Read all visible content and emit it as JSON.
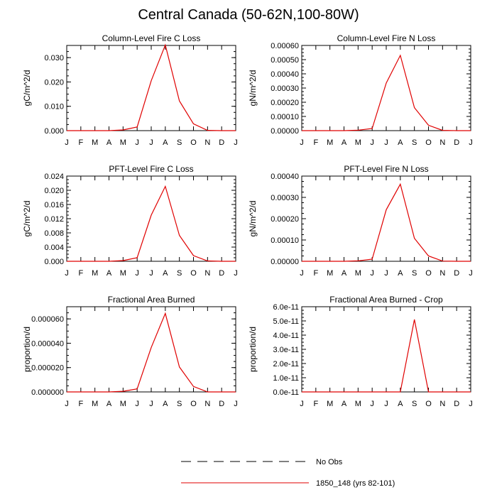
{
  "title": "Central Canada (50-62N,100-80W)",
  "months": [
    "J",
    "F",
    "M",
    "A",
    "M",
    "J",
    "J",
    "A",
    "S",
    "O",
    "N",
    "D",
    "J"
  ],
  "legend": {
    "entries": [
      {
        "label": "No Obs",
        "style": "dashed",
        "color": "#000000"
      },
      {
        "label": "1850_148 (yrs 82-101)",
        "style": "solid",
        "color": "#e00000"
      }
    ]
  },
  "chart_data": [
    {
      "type": "line",
      "title": "Column-Level Fire C Loss",
      "ylabel": "gC/m^2/d",
      "ylim": [
        0,
        0.035
      ],
      "yticks": [
        0.0,
        0.01,
        0.02,
        0.03
      ],
      "yticklabels": [
        "0.000",
        "0.010",
        "0.020",
        "0.030"
      ],
      "series": [
        {
          "name": "1850_148 (yrs 82-101)",
          "color": "#e00000",
          "values": [
            0,
            0,
            0,
            0,
            0.0003,
            0.0015,
            0.0205,
            0.0352,
            0.0122,
            0.0028,
            0.0001,
            0,
            0
          ]
        }
      ]
    },
    {
      "type": "line",
      "title": "Column-Level Fire N Loss",
      "ylabel": "gN/m^2/d",
      "ylim": [
        0,
        0.0006
      ],
      "yticks": [
        0,
        0.0001,
        0.0002,
        0.0003,
        0.0004,
        0.0005,
        0.0006
      ],
      "yticklabels": [
        "0.00000",
        "0.00010",
        "0.00020",
        "0.00030",
        "0.00040",
        "0.00050",
        "0.00060"
      ],
      "series": [
        {
          "name": "1850_148 (yrs 82-101)",
          "color": "#e00000",
          "values": [
            0,
            0,
            0,
            0,
            3e-06,
            1.5e-05,
            0.000335,
            0.00053,
            0.000162,
            3.8e-05,
            2e-06,
            0,
            0
          ]
        }
      ]
    },
    {
      "type": "line",
      "title": "PFT-Level Fire C Loss",
      "ylabel": "gC/m^2/d",
      "ylim": [
        0,
        0.024
      ],
      "yticks": [
        0,
        0.004,
        0.008,
        0.012,
        0.016,
        0.02,
        0.024
      ],
      "yticklabels": [
        "0.000",
        "0.004",
        "0.008",
        "0.012",
        "0.016",
        "0.020",
        "0.024"
      ],
      "series": [
        {
          "name": "1850_148 (yrs 82-101)",
          "color": "#e00000",
          "values": [
            0,
            0,
            0,
            0,
            0.0002,
            0.001,
            0.013,
            0.0211,
            0.0073,
            0.0016,
            0.0001,
            0,
            0
          ]
        }
      ]
    },
    {
      "type": "line",
      "title": "PFT-Level Fire N Loss",
      "ylabel": "gN/m^2/d",
      "ylim": [
        0,
        0.0004
      ],
      "yticks": [
        0,
        0.0001,
        0.0002,
        0.0003,
        0.0004
      ],
      "yticklabels": [
        "0.00000",
        "0.00010",
        "0.00020",
        "0.00030",
        "0.00040"
      ],
      "series": [
        {
          "name": "1850_148 (yrs 82-101)",
          "color": "#e00000",
          "values": [
            0,
            0,
            0,
            0,
            2e-06,
            1e-05,
            0.000242,
            0.000362,
            0.000108,
            2.5e-05,
            1e-06,
            0,
            0
          ]
        }
      ]
    },
    {
      "type": "line",
      "title": "Fractional Area Burned",
      "ylabel": "proportion/d",
      "ylim": [
        0,
        7e-05
      ],
      "yticks": [
        0,
        2e-05,
        4e-05,
        6e-05
      ],
      "yticklabels": [
        "0.000000",
        "0.000020",
        "0.000040",
        "0.000060"
      ],
      "series": [
        {
          "name": "1850_148 (yrs 82-101)",
          "color": "#e00000",
          "values": [
            0,
            0,
            0,
            0,
            5e-07,
            2.5e-06,
            3.65e-05,
            6.45e-05,
            2.05e-05,
            4.5e-06,
            0,
            0,
            0
          ]
        }
      ]
    },
    {
      "type": "line",
      "title": "Fractional Area Burned - Crop",
      "ylabel": "proportion/d",
      "ylim": [
        0,
        6e-11
      ],
      "yticks": [
        0,
        1e-11,
        2e-11,
        3e-11,
        4e-11,
        5e-11,
        6e-11
      ],
      "yticklabels": [
        "0.0e-11",
        "1.0e-11",
        "2.0e-11",
        "3.0e-11",
        "4.0e-11",
        "5.0e-11",
        "6.0e-11"
      ],
      "series": [
        {
          "name": "1850_148 (yrs 82-101)",
          "color": "#e00000",
          "values": [
            0,
            0,
            0,
            0,
            0,
            0,
            0,
            0,
            5.1e-11,
            0,
            0,
            0,
            0
          ]
        }
      ]
    }
  ]
}
